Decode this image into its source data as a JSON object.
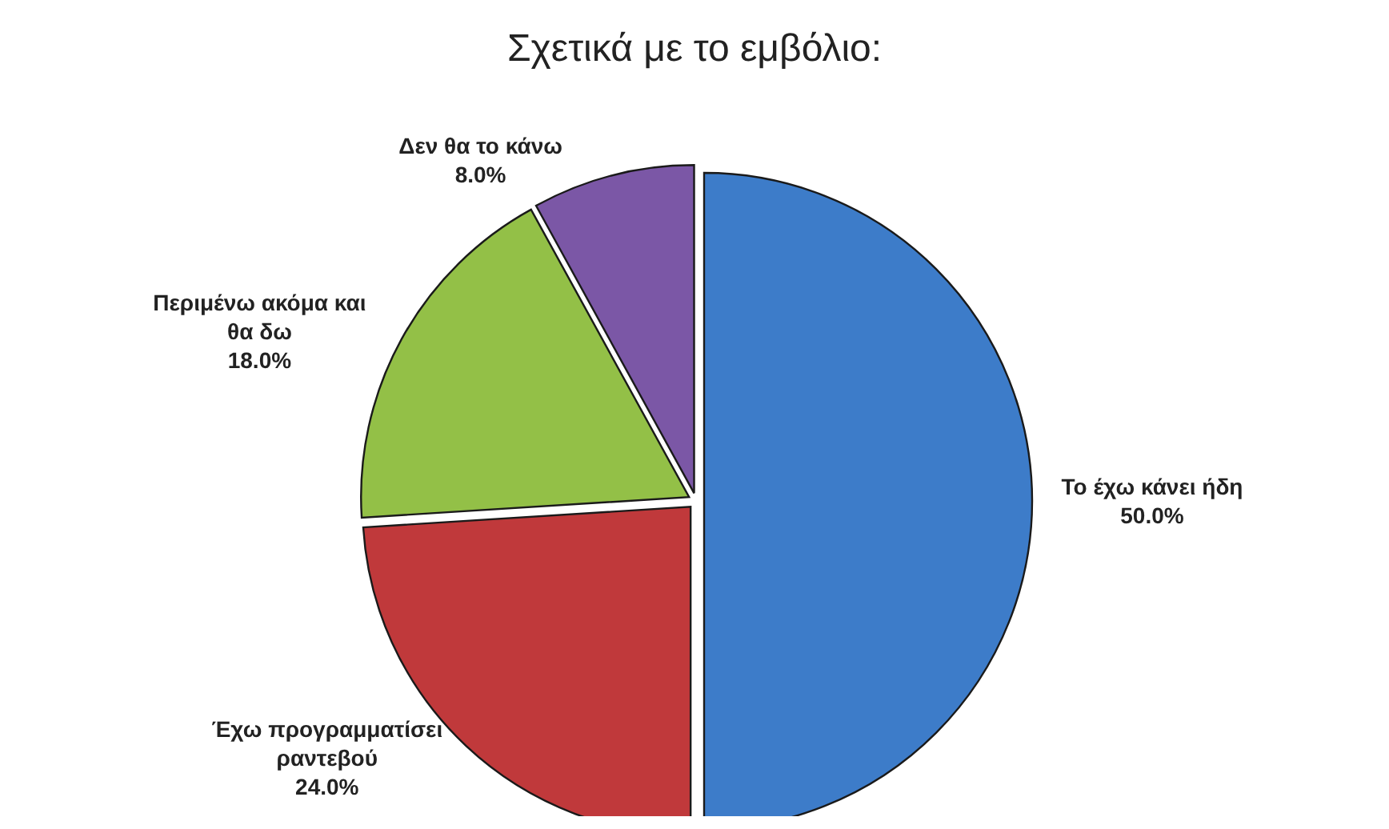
{
  "chart_data": {
    "type": "pie",
    "title": "Σχετικά με το εμβόλιο:",
    "categories": [
      "Το έχω κάνει ήδη",
      "Έχω προγραμματίσει ραντεβού",
      "Περιμένω ακόμα και θα δω",
      "Δεν θα το κάνω"
    ],
    "values": [
      50,
      24,
      18,
      8
    ],
    "colors": [
      "#3d7cc9",
      "#c0393b",
      "#93c047",
      "#7b57a6"
    ],
    "value_labels": [
      "50.0%",
      "24.0%",
      "18.0%",
      "8.0%"
    ]
  }
}
